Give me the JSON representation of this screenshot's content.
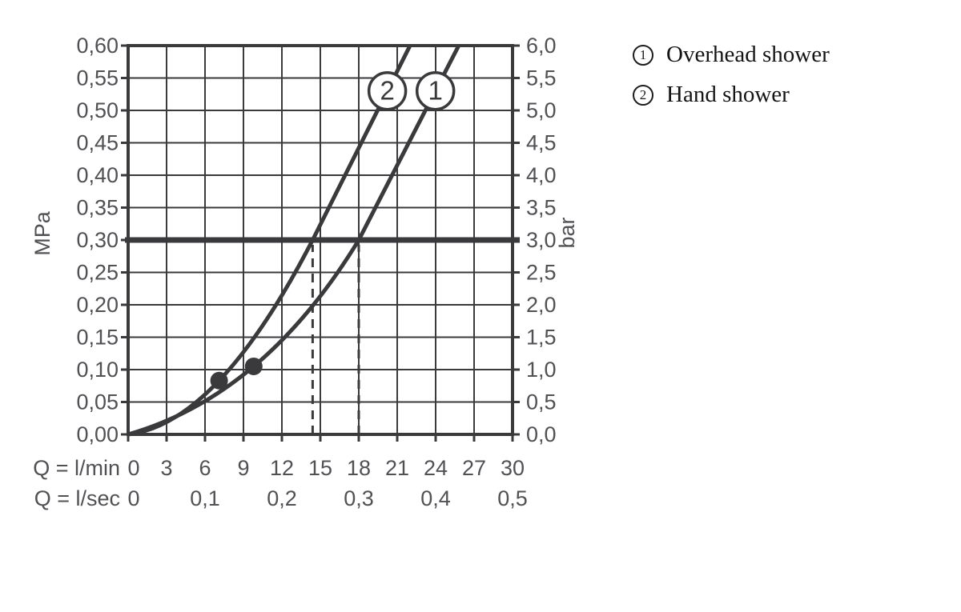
{
  "colors": {
    "ink": "#3a3a3c",
    "text": "#515155",
    "legend_text": "#141414",
    "background": "#ffffff"
  },
  "legend": {
    "items": [
      {
        "number": "1",
        "label": "Overhead shower"
      },
      {
        "number": "2",
        "label": "Hand shower"
      }
    ]
  },
  "chart_data": {
    "type": "line",
    "grid": true,
    "legend_position": "right",
    "x": {
      "row1_label": "Q = l/min",
      "min": 0,
      "max": 30,
      "tick_values": [
        0,
        3,
        6,
        9,
        12,
        15,
        18,
        21,
        24,
        27,
        30
      ],
      "tick_labels": [
        "0",
        "3",
        "6",
        "9",
        "12",
        "15",
        "18",
        "21",
        "24",
        "27",
        "30"
      ],
      "row2_label": "Q = l/sec",
      "secondary": [
        {
          "q": 0,
          "label": "0"
        },
        {
          "q": 6,
          "label": "0,1"
        },
        {
          "q": 12,
          "label": "0,2"
        },
        {
          "q": 18,
          "label": "0,3"
        },
        {
          "q": 24,
          "label": "0,4"
        },
        {
          "q": 30,
          "label": "0,5"
        }
      ]
    },
    "y_left": {
      "label": "MPa",
      "min": 0,
      "max": 0.6,
      "step": 0.05,
      "tick_values": [
        0.6,
        0.55,
        0.5,
        0.45,
        0.4,
        0.35,
        0.3,
        0.25,
        0.2,
        0.15,
        0.1,
        0.05,
        0.0
      ],
      "tick_labels": [
        "0,60",
        "0,55",
        "0,50",
        "0,45",
        "0,40",
        "0,35",
        "0,30",
        "0,25",
        "0,20",
        "0,15",
        "0,10",
        "0,05",
        "0,00"
      ]
    },
    "y_right": {
      "label": "bar",
      "min": 0,
      "max": 6,
      "step": 0.5,
      "tick_labels": [
        "6,0",
        "5,5",
        "5,0",
        "4,5",
        "4,0",
        "3,5",
        "3,0",
        "2,5",
        "2,0",
        "1,5",
        "1,0",
        "0,5",
        "0,0"
      ]
    },
    "series": [
      {
        "id": "1",
        "name": "Overhead shower",
        "points_q_p": [
          [
            0,
            0
          ],
          [
            9.8,
            0.105
          ],
          [
            18,
            0.3
          ],
          [
            25.8,
            0.6
          ]
        ]
      },
      {
        "id": "2",
        "name": "Hand shower",
        "points_q_p": [
          [
            0,
            0
          ],
          [
            7.1,
            0.083
          ],
          [
            14.4,
            0.3
          ],
          [
            22,
            0.6
          ]
        ]
      }
    ],
    "reference_pressure_mpa": 0.3,
    "dashed_flow_lmin": [
      14.4,
      18
    ],
    "marked_points": [
      {
        "series": "2",
        "q_lmin": 7.1,
        "p_mpa": 0.083
      },
      {
        "series": "1",
        "q_lmin": 9.8,
        "p_mpa": 0.105
      }
    ]
  }
}
